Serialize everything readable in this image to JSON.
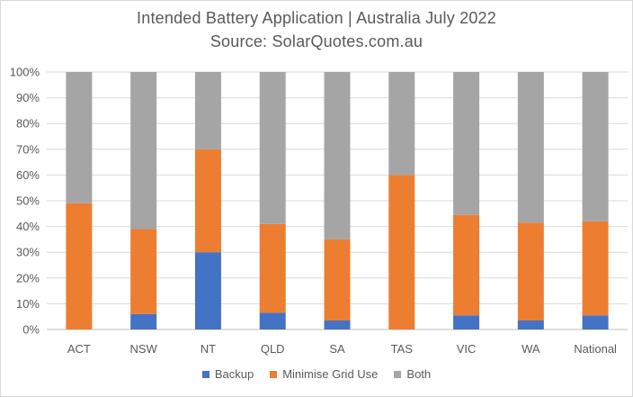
{
  "chart_data": {
    "type": "bar",
    "stacked": true,
    "title": "Intended Battery Application | Australia July 2022",
    "subtitle": "Source: SolarQuotes.com.au",
    "categories": [
      "ACT",
      "NSW",
      "NT",
      "QLD",
      "SA",
      "TAS",
      "VIC",
      "WA",
      "National"
    ],
    "series": [
      {
        "name": "Backup",
        "color": "#4472c4",
        "values": [
          0,
          6,
          30,
          6.5,
          3.5,
          0,
          5.5,
          3.5,
          5.5
        ]
      },
      {
        "name": "Minimise Grid Use",
        "color": "#ed7d31",
        "values": [
          49,
          33,
          40,
          34.5,
          31.5,
          60,
          39,
          38,
          36.5
        ]
      },
      {
        "name": "Both",
        "color": "#a5a5a5",
        "values": [
          51,
          61,
          30,
          59,
          65,
          40,
          55.5,
          58.5,
          58
        ]
      }
    ],
    "y_ticks": [
      "0%",
      "10%",
      "20%",
      "30%",
      "40%",
      "50%",
      "60%",
      "70%",
      "80%",
      "90%",
      "100%"
    ],
    "ylim": [
      0,
      100
    ],
    "grid": true,
    "legend_position": "bottom"
  }
}
